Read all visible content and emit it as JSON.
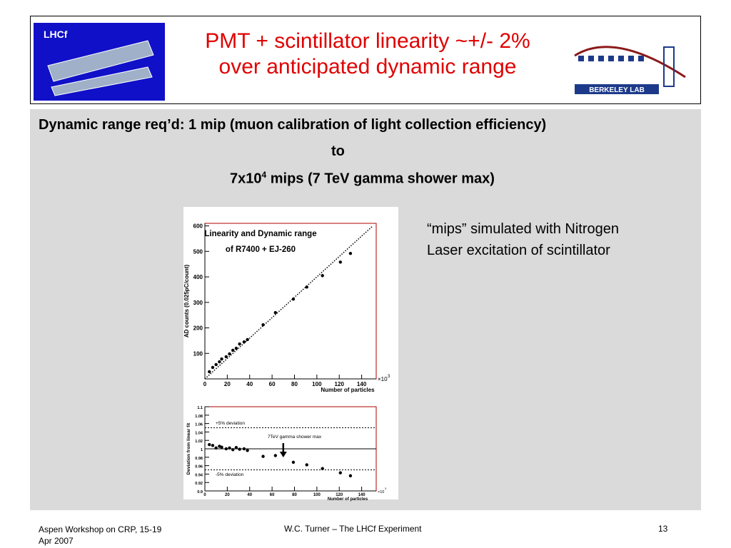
{
  "header": {
    "logo_left": "LHCf",
    "title_lines": [
      "PMT + scintillator linearity ~+/- 2%",
      "over anticipated dynamic range"
    ],
    "logo_right": "BERKELEY LAB"
  },
  "body": {
    "line1": "Dynamic range req’d: 1 mip (muon calibration of light collection efficiency)",
    "line2": "to",
    "line3_base": "7x10",
    "line3_sup": "4",
    "line3_rest": " mips (7 TeV gamma shower max)",
    "note_lines": [
      "“mips” simulated with Nitrogen",
      "Laser excitation of scintillator"
    ]
  },
  "footer": {
    "left_lines": [
      "Aspen Workshop on CRP, 15-19",
      "Apr 2007"
    ],
    "center": "W.C. Turner – The LHCf Experiment",
    "page": "13"
  },
  "chart_data": [
    {
      "type": "scatter",
      "title_lines": [
        "Linearity and Dynamic range",
        "of R7400 + EJ-260"
      ],
      "x_label": "Number of particles",
      "x_exponent_base": "×10",
      "x_exponent": "3",
      "y_label": "AD counts (0.025pC/count)",
      "xlim": [
        0,
        153
      ],
      "ylim": [
        0,
        610
      ],
      "xticks": [
        0,
        20,
        40,
        60,
        80,
        100,
        120,
        140
      ],
      "yticks": [
        100,
        200,
        300,
        400,
        500,
        600
      ],
      "color": "#000000",
      "x": [
        4,
        7,
        10,
        13,
        15,
        19,
        22,
        25,
        28,
        31,
        35,
        38,
        52,
        63,
        79,
        91,
        105,
        121,
        130
      ],
      "values": [
        28,
        45,
        56,
        67,
        78,
        87,
        98,
        112,
        120,
        137,
        145,
        154,
        212,
        260,
        313,
        360,
        405,
        458,
        492
      ],
      "fit": {
        "x": [
          0,
          150
        ],
        "values": [
          0,
          600
        ]
      }
    },
    {
      "type": "scatter",
      "x_label": "Number of particles",
      "x_exponent_base": "×10",
      "x_exponent": "3",
      "y_label": "Deviation from linear fit",
      "xlim": [
        0,
        153
      ],
      "ylim": [
        0.9,
        1.1
      ],
      "xticks": [
        0,
        20,
        40,
        60,
        80,
        100,
        120,
        140
      ],
      "yticks": [
        0.9,
        0.92,
        0.94,
        0.96,
        0.98,
        1,
        1.02,
        1.04,
        1.06,
        1.08,
        1.1
      ],
      "color": "#000000",
      "x": [
        4,
        7,
        10,
        13,
        15,
        19,
        22,
        25,
        28,
        31,
        35,
        38,
        52,
        63,
        79,
        91,
        105,
        121,
        130
      ],
      "values": [
        1.01,
        1.008,
        1.002,
        1.006,
        1.004,
        1.0,
        1.002,
        0.998,
        1.003,
        0.999,
        1.0,
        0.996,
        0.982,
        0.984,
        0.968,
        0.962,
        0.953,
        0.943,
        0.936
      ],
      "hlines": [
        1.05,
        1,
        0.95
      ],
      "annotations": [
        "+5% deviation",
        "7TeV gamma shower max",
        "-5% deviation"
      ],
      "arrow_x": 70
    }
  ]
}
